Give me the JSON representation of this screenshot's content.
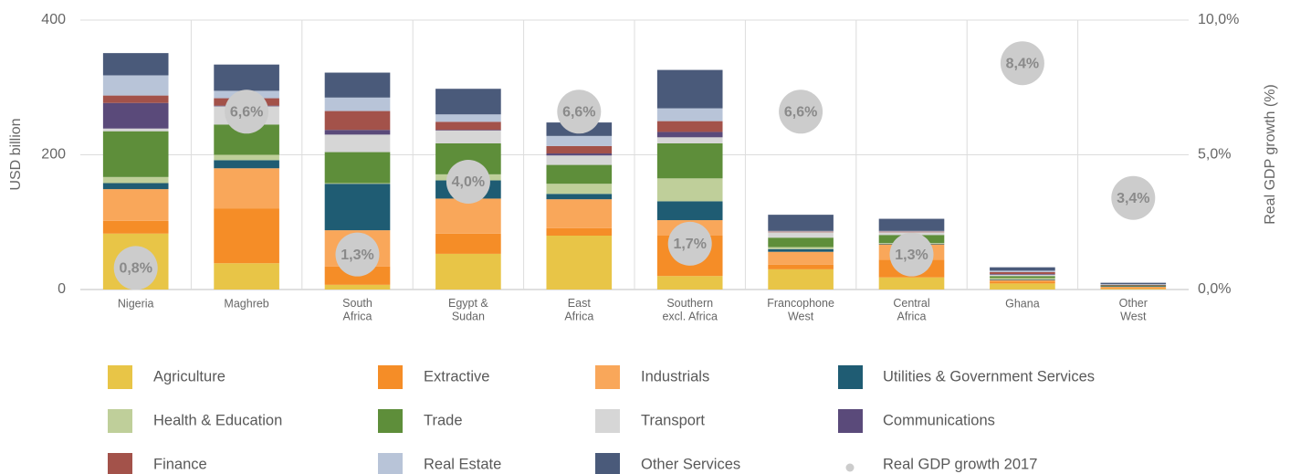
{
  "chart_data": {
    "type": "bar",
    "stacked": true,
    "y_label": "USD billion",
    "y2_label": "Real GDP growth (%)",
    "categories": [
      "Nigeria",
      "Maghreb",
      "South\nAfrica",
      "Egypt &\nSudan",
      "East\nAfrica",
      "Southern\nexcl. Africa",
      "Francophone\nWest",
      "Central\nAfrica",
      "Ghana",
      "Other\nWest"
    ],
    "ylim": [
      0,
      400
    ],
    "yticks": [
      0,
      200,
      400
    ],
    "y2lim": [
      0,
      10
    ],
    "y2ticks": [
      {
        "value": 0,
        "label": "0,0%"
      },
      {
        "value": 5,
        "label": "5,0%"
      },
      {
        "value": 10,
        "label": "10,0%"
      }
    ],
    "grid": true,
    "series": [
      {
        "name": "Agriculture",
        "color": "#e8c547",
        "values": [
          83,
          39,
          7,
          53,
          80,
          20,
          30,
          18,
          9,
          1
        ]
      },
      {
        "name": "Extractive",
        "color": "#f58d27",
        "values": [
          19,
          81,
          27,
          30,
          11,
          60,
          7,
          26,
          3,
          1
        ]
      },
      {
        "name": "Industrials",
        "color": "#f9a75a",
        "values": [
          47,
          60,
          54,
          52,
          43,
          23,
          19,
          23,
          2,
          2
        ]
      },
      {
        "name": "Utilities & Government Services",
        "color": "#1f5c73",
        "values": [
          9,
          12,
          69,
          27,
          8,
          28,
          4,
          1,
          1,
          1
        ]
      },
      {
        "name": "Health & Education",
        "color": "#bfcf9a",
        "values": [
          9,
          8,
          1,
          9,
          15,
          34,
          3,
          1,
          2,
          0
        ]
      },
      {
        "name": "Trade",
        "color": "#5e8e3a",
        "values": [
          68,
          45,
          46,
          46,
          28,
          52,
          14,
          12,
          3,
          1
        ]
      },
      {
        "name": "Transport",
        "color": "#d6d6d6",
        "values": [
          4,
          27,
          26,
          19,
          14,
          9,
          8,
          4,
          2,
          0
        ]
      },
      {
        "name": "Communications",
        "color": "#5a4a7a",
        "values": [
          38,
          1,
          7,
          1,
          3,
          8,
          0,
          0,
          1,
          0
        ]
      },
      {
        "name": "Finance",
        "color": "#a3524a",
        "values": [
          11,
          11,
          28,
          12,
          11,
          16,
          1,
          1,
          3,
          1
        ]
      },
      {
        "name": "Real Estate",
        "color": "#b8c4d8",
        "values": [
          30,
          11,
          20,
          11,
          15,
          19,
          1,
          1,
          2,
          1
        ]
      },
      {
        "name": "Other Services",
        "color": "#4a5a7a",
        "values": [
          33,
          39,
          37,
          38,
          20,
          57,
          24,
          18,
          5,
          2
        ]
      },
      {
        "name": "Real GDP growth 2017",
        "color": "#cccccc",
        "axis": "y2",
        "values": [
          0.8,
          6.6,
          1.3,
          4.0,
          6.6,
          1.7,
          6.6,
          1.3,
          8.4,
          3.4
        ],
        "value_labels": [
          "0,8%",
          "6,6%",
          "1,3%",
          "4,0%",
          "6,6%",
          "1,7%",
          "6,6%",
          "1,3%",
          "8,4%",
          "3,4%"
        ]
      }
    ]
  }
}
